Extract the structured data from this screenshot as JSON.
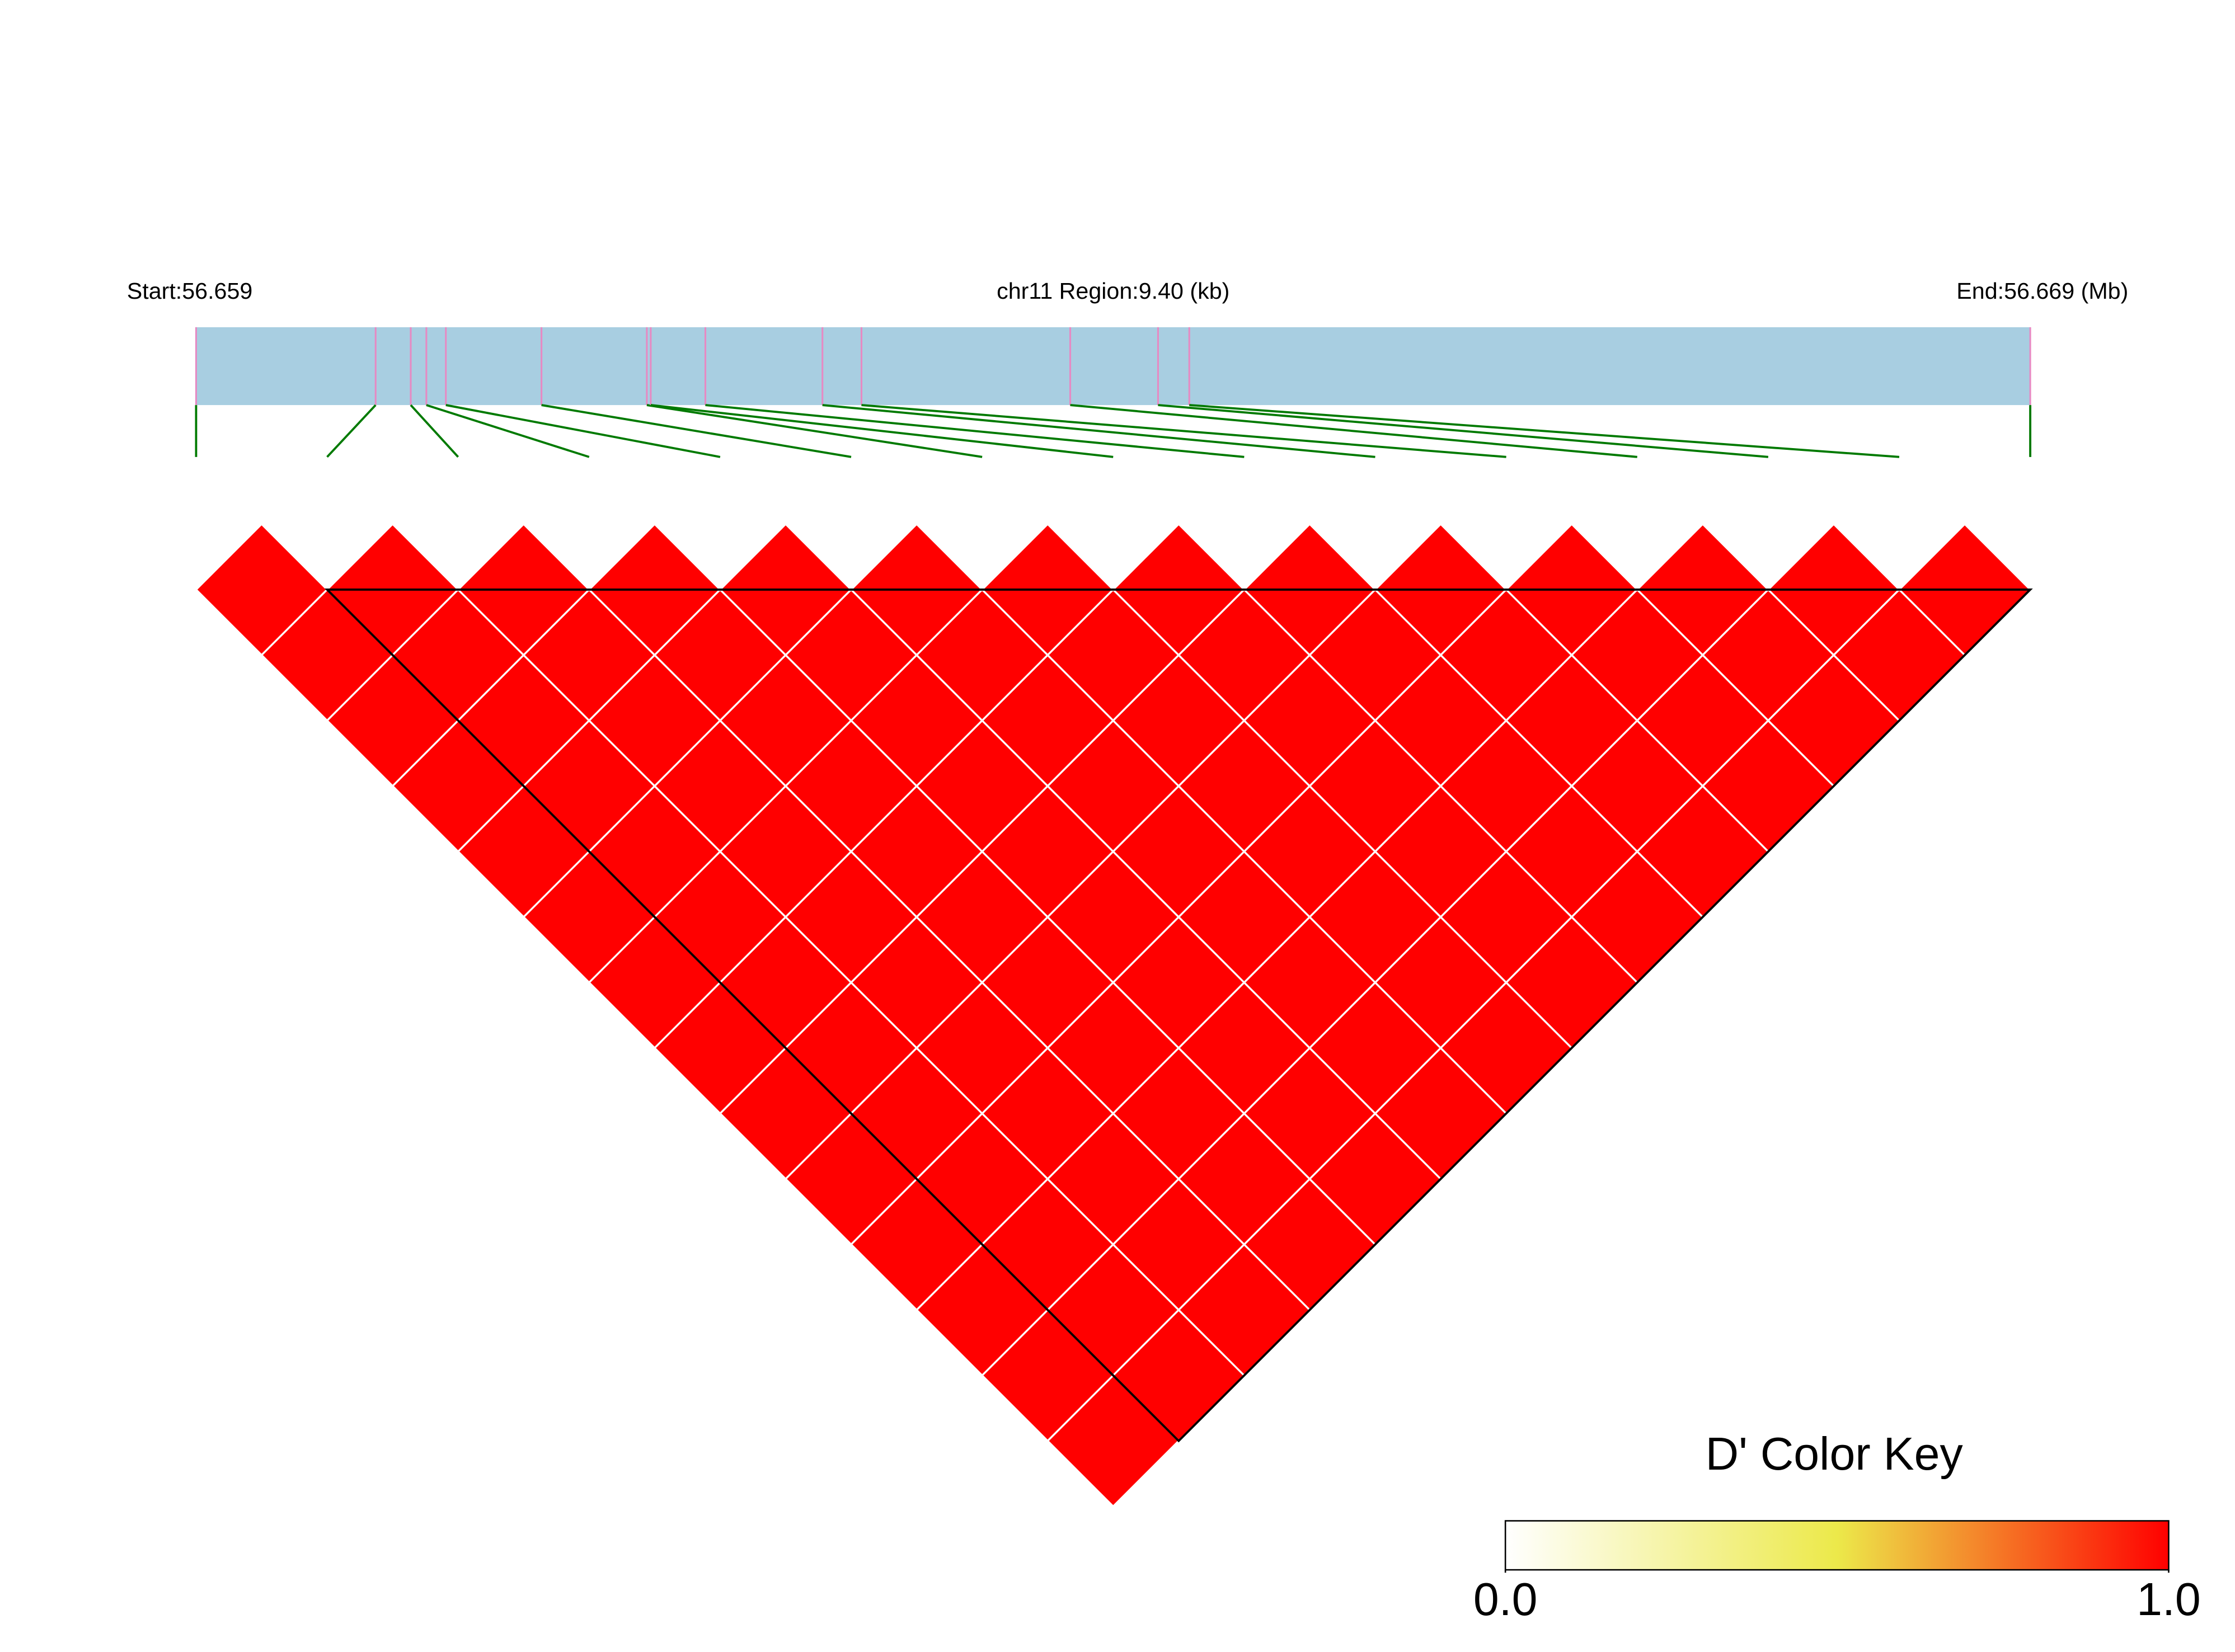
{
  "chart_data": {
    "type": "ld_heatmap",
    "start_label": "Start:56.659",
    "region_label": "chr11 Region:9.40 (kb)",
    "end_label": "End:56.669 (Mb)",
    "xlim": [
      0,
      9.4
    ],
    "snp_positions_kb": [
      0,
      0.92,
      1.1,
      1.18,
      1.28,
      1.77,
      2.31,
      2.33,
      2.61,
      3.21,
      3.41,
      4.48,
      4.93,
      5.09,
      9.4
    ],
    "dprime": [
      [
        1,
        1,
        1,
        1,
        1,
        1,
        1,
        1,
        1,
        1,
        1,
        1,
        1,
        1
      ],
      [
        1,
        1,
        1,
        1,
        1,
        1,
        1,
        1,
        1,
        1,
        1,
        1,
        1
      ],
      [
        1,
        1,
        1,
        1,
        1,
        1,
        1,
        1,
        1,
        1,
        1,
        1
      ],
      [
        1,
        1,
        1,
        1,
        1,
        1,
        1,
        1,
        1,
        1,
        1
      ],
      [
        1,
        1,
        1,
        1,
        1,
        1,
        1,
        1,
        1,
        1
      ],
      [
        1,
        1,
        1,
        1,
        1,
        1,
        1,
        1,
        1
      ],
      [
        1,
        1,
        1,
        1,
        1,
        1,
        1,
        1
      ],
      [
        1,
        1,
        1,
        1,
        1,
        1,
        1
      ],
      [
        1,
        1,
        1,
        1,
        1,
        1
      ],
      [
        1,
        1,
        1,
        1,
        1
      ],
      [
        1,
        1,
        1,
        1
      ],
      [
        1,
        1,
        1
      ],
      [
        1,
        1
      ],
      [
        1
      ]
    ],
    "blocks": [
      [
        1,
        14
      ]
    ],
    "key_title": "D' Color Key",
    "key_lim": [
      0,
      1
    ],
    "key_ticks": [
      {
        "value": 0,
        "label": "0.0"
      },
      {
        "value": 1,
        "label": "1.0"
      }
    ],
    "colors": [
      "#ffffff",
      "#ece94a",
      "#ff0000"
    ],
    "bar_color": "#a8cee1",
    "snp_color": "#e68ac3",
    "link_color": "#007a00"
  }
}
